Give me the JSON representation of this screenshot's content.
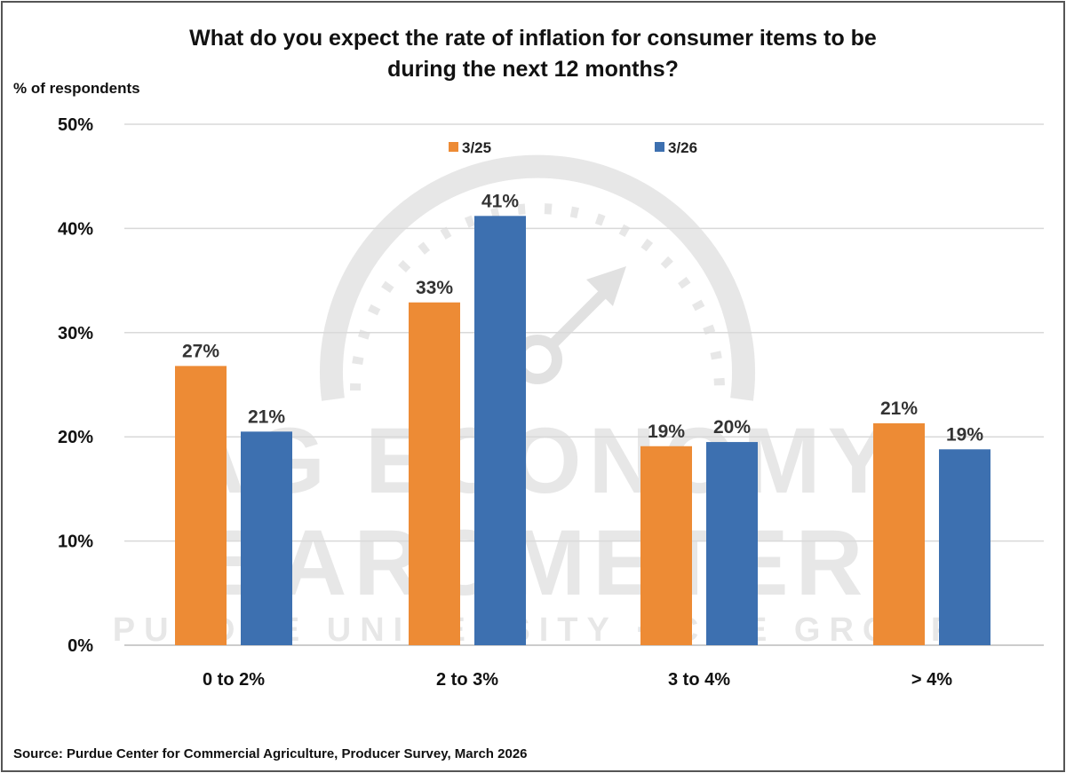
{
  "chart_data": {
    "type": "bar",
    "title": "What do you expect the rate of inflation for consumer items to be during the next 12 months?",
    "title_lines": [
      "What do you expect the rate of inflation for consumer items to be",
      "during the next 12 months?"
    ],
    "ylabel": "% of respondents",
    "xlabel": "",
    "ylim": [
      0,
      50
    ],
    "yticks": [
      "0%",
      "10%",
      "20%",
      "30%",
      "40%",
      "50%"
    ],
    "grid": true,
    "legend_position": "top-center",
    "categories": [
      "0 to 2%",
      "2 to 3%",
      "3 to 4%",
      "> 4%"
    ],
    "series": [
      {
        "name": "3/25",
        "color": "#ED8B35",
        "values": [
          26.8,
          32.9,
          19.1,
          21.3
        ],
        "labels": [
          "27%",
          "33%",
          "19%",
          "21%"
        ]
      },
      {
        "name": "3/26",
        "color": "#3D70B0",
        "values": [
          20.5,
          41.2,
          19.5,
          18.8
        ],
        "labels": [
          "21%",
          "41%",
          "20%",
          "19%"
        ]
      }
    ],
    "source": "Source: Purdue Center for Commercial Agriculture, Producer Survey, March 2026"
  },
  "watermark": {
    "line1": "AG ECONOMY",
    "line2": "BAROMETER",
    "line3": "PURDUE UNIVERSITY · CME GROUP"
  }
}
